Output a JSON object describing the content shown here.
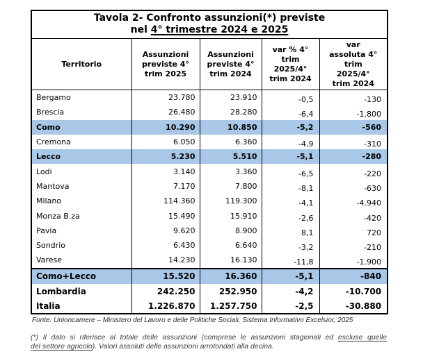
{
  "title": {
    "line1": "Tavola 2- Confronto assunzioni(*) previste",
    "line2_prefix": "nel ",
    "line2_underlined": "4° trimestre 2024 e 2025"
  },
  "table": {
    "columns": [
      "Territorio",
      "Assunzioni\npreviste 4°\ntrim 2025",
      "Assunzioni\npreviste 4°\ntrim 2024",
      "var % 4°\ntrim\n2025/4°\ntrim 2024",
      "var\nassoluta 4°\ntrim\n2025/4°\ntrim 2024"
    ],
    "rows": [
      {
        "territory": "Bergamo",
        "hires_2025": "23.780",
        "hires_2024": "23.910",
        "var_pct": "-0,5",
        "var_abs": "-130",
        "style": "normal"
      },
      {
        "territory": "Brescia",
        "hires_2025": "26.480",
        "hires_2024": "28.280",
        "var_pct": "-6,4",
        "var_abs": "-1.800",
        "style": "normal"
      },
      {
        "territory": "Como",
        "hires_2025": "10.290",
        "hires_2024": "10.850",
        "var_pct": "-5,2",
        "var_abs": "-560",
        "style": "highlight"
      },
      {
        "territory": "Cremona",
        "hires_2025": "6.050",
        "hires_2024": "6.360",
        "var_pct": "-4,9",
        "var_abs": "-310",
        "style": "normal"
      },
      {
        "territory": "Lecco",
        "hires_2025": "5.230",
        "hires_2024": "5.510",
        "var_pct": "-5,1",
        "var_abs": "-280",
        "style": "highlight"
      },
      {
        "territory": "Lodi",
        "hires_2025": "3.140",
        "hires_2024": "3.360",
        "var_pct": "-6,5",
        "var_abs": "-220",
        "style": "normal"
      },
      {
        "territory": "Mantova",
        "hires_2025": "7.170",
        "hires_2024": "7.800",
        "var_pct": "-8,1",
        "var_abs": "-630",
        "style": "normal"
      },
      {
        "territory": "Milano",
        "hires_2025": "114.360",
        "hires_2024": "119.300",
        "var_pct": "-4,1",
        "var_abs": "-4.940",
        "style": "normal"
      },
      {
        "territory": "Monza B.za",
        "hires_2025": "15.490",
        "hires_2024": "15.910",
        "var_pct": "-2,6",
        "var_abs": "-420",
        "style": "normal"
      },
      {
        "territory": "Pavia",
        "hires_2025": "9.620",
        "hires_2024": "8.900",
        "var_pct": "8,1",
        "var_abs": "720",
        "style": "normal"
      },
      {
        "territory": "Sondrio",
        "hires_2025": "6.430",
        "hires_2024": "6.640",
        "var_pct": "-3,2",
        "var_abs": "-210",
        "style": "normal"
      },
      {
        "territory": "Varese",
        "hires_2025": "14.230",
        "hires_2024": "16.130",
        "var_pct": "-11,8",
        "var_abs": "-1.900",
        "style": "normal"
      },
      {
        "territory": "Como+Lecco",
        "hires_2025": "15.520",
        "hires_2024": "16.360",
        "var_pct": "-5,1",
        "var_abs": "-840",
        "style": "highlight-total"
      },
      {
        "territory": "Lombardia",
        "hires_2025": "242.250",
        "hires_2024": "252.950",
        "var_pct": "-4,2",
        "var_abs": "-10.700",
        "style": "total"
      },
      {
        "territory": "Italia",
        "hires_2025": "1.226.870",
        "hires_2024": "1.257.750",
        "var_pct": "-2,5",
        "var_abs": "-30.880",
        "style": "total"
      }
    ]
  },
  "source_note": "Fonte: Unioncamere – Ministero del Lavoro e delle Politiche Sociali, Sistema Informativo Excelsior, 2025",
  "footnote": {
    "line1_pre": "(*) Il dato si riferisce al totale delle assunzioni (comprese le assunzioni stagionali ed ",
    "line1_underlined": "escluse quelle",
    "line2_underlined": "del settore agricolo",
    "line2_post": "). Valori assoluti delle assunzioni arrotondati alla decina."
  },
  "colors": {
    "highlight_row": "#A9C8E8",
    "border": "#000000",
    "text": "#000000",
    "note_text": "#3A3A3A"
  }
}
